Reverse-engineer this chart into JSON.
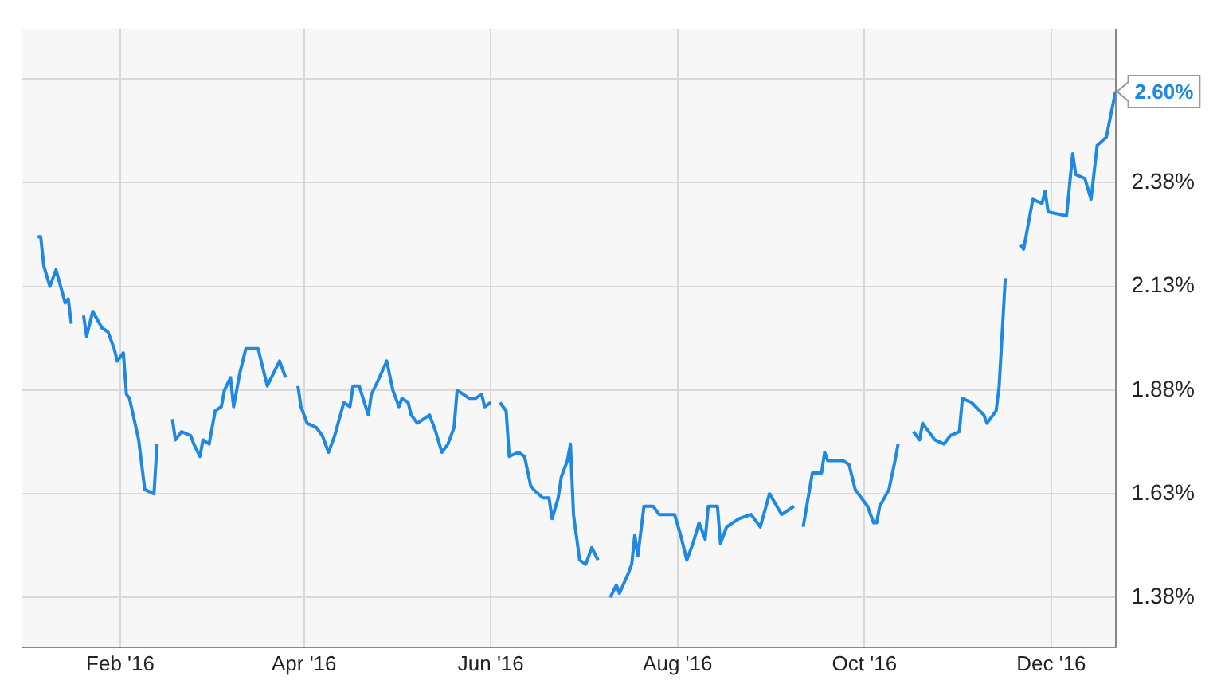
{
  "chart_data": {
    "type": "line",
    "x": [
      "2016-01-05",
      "2016-01-06",
      "2016-01-07",
      "2016-01-09",
      "2016-01-11",
      "2016-01-14",
      "2016-01-15",
      "2016-01-16",
      "2016-01-18",
      "2016-01-20",
      "2016-01-21",
      "2016-01-23",
      "2016-01-26",
      "2016-01-28",
      "2016-01-30",
      "2016-01-31",
      "2016-02-02",
      "2016-02-03",
      "2016-02-04",
      "2016-02-07",
      "2016-02-09",
      "2016-02-12",
      "2016-02-13",
      "2016-02-15",
      "2016-02-18",
      "2016-02-19",
      "2016-02-21",
      "2016-02-24",
      "2016-02-25",
      "2016-02-27",
      "2016-02-28",
      "2016-03-01",
      "2016-03-03",
      "2016-03-05",
      "2016-03-06",
      "2016-03-08",
      "2016-03-09",
      "2016-03-11",
      "2016-03-13",
      "2016-03-17",
      "2016-03-20",
      "2016-03-24",
      "2016-03-26",
      "2016-03-28",
      "2016-03-30",
      "2016-03-31",
      "2016-04-02",
      "2016-04-05",
      "2016-04-07",
      "2016-04-09",
      "2016-04-11",
      "2016-04-14",
      "2016-04-16",
      "2016-04-17",
      "2016-04-19",
      "2016-04-22",
      "2016-04-23",
      "2016-04-25",
      "2016-04-28",
      "2016-04-30",
      "2016-05-02",
      "2016-05-03",
      "2016-05-05",
      "2016-05-06",
      "2016-05-08",
      "2016-05-12",
      "2016-05-14",
      "2016-05-16",
      "2016-05-18",
      "2016-05-20",
      "2016-05-21",
      "2016-05-25",
      "2016-05-27",
      "2016-05-29",
      "2016-05-30",
      "2016-06-01",
      "2016-06-02",
      "2016-06-04",
      "2016-06-06",
      "2016-06-07",
      "2016-06-10",
      "2016-06-12",
      "2016-06-14",
      "2016-06-15",
      "2016-06-18",
      "2016-06-20",
      "2016-06-21",
      "2016-06-23",
      "2016-06-24",
      "2016-06-26",
      "2016-06-27",
      "2016-06-28",
      "2016-06-30",
      "2016-07-02",
      "2016-07-04",
      "2016-07-06",
      "2016-07-08",
      "2016-07-10",
      "2016-07-12",
      "2016-07-13",
      "2016-07-16",
      "2016-07-17",
      "2016-07-18",
      "2016-07-19",
      "2016-07-21",
      "2016-07-24",
      "2016-07-26",
      "2016-07-28",
      "2016-07-31",
      "2016-08-02",
      "2016-08-04",
      "2016-08-06",
      "2016-08-08",
      "2016-08-10",
      "2016-08-11",
      "2016-08-14",
      "2016-08-15",
      "2016-08-17",
      "2016-08-21",
      "2016-08-25",
      "2016-08-28",
      "2016-08-31",
      "2016-09-04",
      "2016-09-08",
      "2016-09-10",
      "2016-09-11",
      "2016-09-14",
      "2016-09-17",
      "2016-09-18",
      "2016-09-19",
      "2016-09-24",
      "2016-09-26",
      "2016-09-28",
      "2016-10-02",
      "2016-10-04",
      "2016-10-05",
      "2016-10-06",
      "2016-10-09",
      "2016-10-11",
      "2016-10-12",
      "2016-10-14",
      "2016-10-17",
      "2016-10-19",
      "2016-10-20",
      "2016-10-24",
      "2016-10-27",
      "2016-10-29",
      "2016-11-01",
      "2016-11-02",
      "2016-11-05",
      "2016-11-09",
      "2016-11-10",
      "2016-11-13",
      "2016-11-14",
      "2016-11-16",
      "2016-11-18",
      "2016-11-21",
      "2016-11-22",
      "2016-11-24",
      "2016-11-25",
      "2016-11-28",
      "2016-11-29",
      "2016-11-30",
      "2016-12-06",
      "2016-12-08",
      "2016-12-09",
      "2016-12-12",
      "2016-12-14",
      "2016-12-16",
      "2016-12-19",
      "2016-12-22"
    ],
    "series": [
      {
        "color": "#1e88e5",
        "values": [
          2.25,
          2.25,
          2.18,
          2.13,
          2.17,
          2.09,
          2.1,
          2.04,
          null,
          2.06,
          2.01,
          2.07,
          2.03,
          2.02,
          1.98,
          1.95,
          1.97,
          1.87,
          1.86,
          1.76,
          1.64,
          1.63,
          1.75,
          null,
          1.81,
          1.76,
          1.78,
          1.77,
          1.75,
          1.72,
          1.76,
          1.75,
          1.83,
          1.84,
          1.88,
          1.91,
          1.84,
          1.92,
          1.98,
          1.98,
          1.89,
          1.95,
          1.91,
          null,
          1.89,
          1.84,
          1.8,
          1.79,
          1.77,
          1.73,
          1.77,
          1.85,
          1.84,
          1.89,
          1.89,
          1.82,
          1.87,
          1.9,
          1.95,
          1.88,
          1.84,
          1.86,
          1.85,
          1.82,
          1.8,
          1.82,
          1.78,
          1.73,
          1.75,
          1.79,
          1.88,
          1.86,
          1.86,
          1.87,
          1.84,
          1.85,
          null,
          1.85,
          1.83,
          1.72,
          1.73,
          1.72,
          1.65,
          1.64,
          1.62,
          1.62,
          1.57,
          1.62,
          1.67,
          1.71,
          1.75,
          1.58,
          1.47,
          1.46,
          1.5,
          1.47,
          null,
          1.38,
          1.41,
          1.39,
          1.44,
          1.46,
          1.53,
          1.48,
          1.6,
          1.6,
          1.58,
          1.58,
          1.58,
          1.53,
          1.47,
          1.51,
          1.56,
          1.52,
          1.6,
          1.6,
          1.51,
          1.55,
          1.57,
          1.58,
          1.55,
          1.63,
          1.58,
          1.6,
          null,
          1.55,
          1.68,
          1.68,
          1.73,
          1.71,
          1.71,
          1.7,
          1.64,
          1.6,
          1.56,
          1.56,
          1.6,
          1.64,
          1.71,
          1.75,
          null,
          1.78,
          1.76,
          1.8,
          1.76,
          1.75,
          1.77,
          1.78,
          1.86,
          1.85,
          1.82,
          1.8,
          1.83,
          1.89,
          2.15,
          null,
          2.23,
          2.22,
          2.3,
          2.34,
          2.33,
          2.36,
          2.31,
          2.3,
          2.45,
          2.4,
          2.39,
          2.34,
          2.47,
          2.49,
          2.6
        ]
      }
    ],
    "xlim": [
      "2015-12-31",
      "2016-12-22"
    ],
    "xticks": [
      {
        "value": "2016-02-01",
        "label": "Feb '16"
      },
      {
        "value": "2016-04-01",
        "label": "Apr '16"
      },
      {
        "value": "2016-06-01",
        "label": "Jun '16"
      },
      {
        "value": "2016-08-01",
        "label": "Aug '16"
      },
      {
        "value": "2016-10-01",
        "label": "Oct '16"
      },
      {
        "value": "2016-12-01",
        "label": "Dec '16"
      }
    ],
    "ylim": [
      1.26,
      2.75
    ],
    "yticks": [
      {
        "value": 1.38,
        "label": "1.38%"
      },
      {
        "value": 1.63,
        "label": "1.63%"
      },
      {
        "value": 1.88,
        "label": "1.88%"
      },
      {
        "value": 2.13,
        "label": "2.13%"
      },
      {
        "value": 2.38,
        "label": "2.38%"
      },
      {
        "value": 2.63,
        "label": null
      }
    ],
    "annotations": [
      {
        "text": "2.60%",
        "x": "2016-12-22",
        "y": 2.6
      }
    ],
    "grid": true,
    "legend": false,
    "marker": "none",
    "line_style": "solid"
  }
}
